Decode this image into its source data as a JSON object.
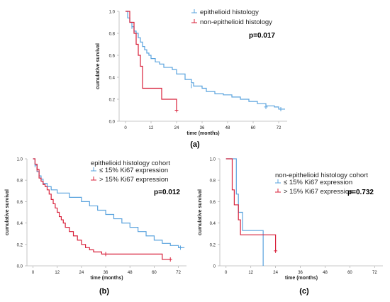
{
  "colors": {
    "blue": "#5aa3de",
    "red": "#d8203a",
    "axis": "#b8b8b8",
    "text": "#222222"
  },
  "chart_data": [
    {
      "id": "a",
      "panel_label": "(a)",
      "type": "line",
      "step": true,
      "title": "",
      "xlabel": "time (months)",
      "ylabel": "cumulative survival",
      "xlim": [
        -3,
        76
      ],
      "ylim": [
        0,
        1.0
      ],
      "xticks": [
        0,
        12,
        24,
        36,
        48,
        60,
        72
      ],
      "yticks": [
        0.0,
        0.2,
        0.4,
        0.6,
        0.8,
        1.0
      ],
      "ytick_labels": [
        "0.0",
        "0.2",
        "0.4",
        "0.6",
        "0.8",
        "1.0"
      ],
      "annotation": "p=0.017",
      "legend": {
        "placement": "top-right"
      },
      "series": [
        {
          "name": "epithelioid histology",
          "color": "blue",
          "x": [
            0,
            1,
            2,
            3,
            4,
            5,
            6,
            7,
            8,
            9,
            10,
            11,
            12,
            14,
            16,
            18,
            22,
            24,
            28,
            31,
            32,
            36,
            38,
            42,
            46,
            50,
            54,
            58,
            62,
            66,
            70,
            72,
            75
          ],
          "y": [
            1.0,
            0.94,
            0.9,
            0.86,
            0.82,
            0.8,
            0.76,
            0.72,
            0.68,
            0.65,
            0.62,
            0.6,
            0.57,
            0.54,
            0.52,
            0.49,
            0.47,
            0.43,
            0.38,
            0.35,
            0.32,
            0.3,
            0.27,
            0.25,
            0.24,
            0.22,
            0.2,
            0.18,
            0.16,
            0.14,
            0.13,
            0.11,
            0.11
          ],
          "censored": [
            [
              3,
              0.86
            ],
            [
              31,
              0.32
            ],
            [
              66,
              0.13
            ],
            [
              73,
              0.11
            ]
          ]
        },
        {
          "name": "non-epithelioid histology",
          "color": "red",
          "x": [
            0,
            2,
            4,
            5,
            6,
            7,
            8,
            17,
            24
          ],
          "y": [
            1.0,
            0.9,
            0.8,
            0.7,
            0.6,
            0.5,
            0.3,
            0.2,
            0.1
          ],
          "censored": [
            [
              24,
              0.1
            ]
          ]
        }
      ]
    },
    {
      "id": "b",
      "panel_label": "(b)",
      "type": "line",
      "step": true,
      "title": "",
      "legend_title": "epithelioid histology cohort",
      "xlabel": "time (months)",
      "ylabel": "cumulative survival",
      "xlim": [
        -3,
        76
      ],
      "ylim": [
        0,
        1.0
      ],
      "xticks": [
        0,
        12,
        24,
        36,
        48,
        60,
        72
      ],
      "yticks": [
        0.0,
        0.2,
        0.4,
        0.6,
        0.8,
        1.0
      ],
      "ytick_labels": [
        "0.0",
        "0.2",
        "0.4",
        "0.6",
        "0.8",
        "1.0"
      ],
      "annotation": "p=0.012",
      "legend": {
        "placement": "top-right"
      },
      "series": [
        {
          "name": "≤ 15% Ki67 expression",
          "color": "blue",
          "x": [
            0,
            1,
            2,
            3,
            4,
            5,
            7,
            9,
            12,
            18,
            24,
            28,
            32,
            36,
            40,
            44,
            48,
            52,
            56,
            60,
            64,
            68,
            72,
            75
          ],
          "y": [
            1.0,
            0.94,
            0.88,
            0.84,
            0.81,
            0.77,
            0.74,
            0.71,
            0.68,
            0.64,
            0.6,
            0.56,
            0.52,
            0.48,
            0.44,
            0.4,
            0.36,
            0.32,
            0.28,
            0.24,
            0.21,
            0.19,
            0.17,
            0.17
          ],
          "censored": [
            [
              1,
              0.94
            ],
            [
              73,
              0.17
            ]
          ]
        },
        {
          "name": "> 15% Ki67 expression",
          "color": "red",
          "x": [
            0,
            1,
            2,
            3,
            4,
            5,
            6,
            7,
            8,
            9,
            10,
            11,
            12,
            13,
            14,
            15,
            16,
            18,
            20,
            22,
            24,
            26,
            28,
            30,
            34,
            64,
            68
          ],
          "y": [
            1.0,
            0.95,
            0.9,
            0.82,
            0.79,
            0.76,
            0.74,
            0.71,
            0.67,
            0.62,
            0.58,
            0.54,
            0.5,
            0.46,
            0.43,
            0.4,
            0.36,
            0.32,
            0.28,
            0.24,
            0.2,
            0.17,
            0.15,
            0.13,
            0.11,
            0.06,
            0.06
          ],
          "censored": [
            [
              2,
              0.9
            ],
            [
              36,
              0.11
            ],
            [
              68,
              0.06
            ]
          ]
        }
      ]
    },
    {
      "id": "c",
      "panel_label": "(c)",
      "type": "line",
      "step": true,
      "title": "",
      "legend_title": "non-epithelioid histology cohort",
      "xlabel": "time (months)",
      "ylabel": "cumulative survival",
      "xlim": [
        -3,
        76
      ],
      "ylim": [
        0,
        1.0
      ],
      "xticks": [
        0,
        12,
        24,
        36,
        48,
        60,
        72
      ],
      "yticks": [
        0.0,
        0.2,
        0.4,
        0.6,
        0.8,
        1.0
      ],
      "ytick_labels": [
        "0",
        "0.2",
        "0.4",
        "0.6",
        "0.8",
        "1.0"
      ],
      "annotation": "p=0.732",
      "legend": {
        "placement": "top-right"
      },
      "series": [
        {
          "name": "≤ 15% Ki67 expression",
          "color": "blue",
          "x": [
            0,
            5,
            6,
            8,
            18
          ],
          "y": [
            1.0,
            0.67,
            0.5,
            0.33,
            0.0
          ],
          "censored": []
        },
        {
          "name": "> 15% Ki67 expression",
          "color": "red",
          "x": [
            0,
            3,
            4,
            6,
            7,
            24
          ],
          "y": [
            1.0,
            0.71,
            0.57,
            0.43,
            0.29,
            0.14
          ],
          "censored": [
            [
              24,
              0.14
            ]
          ]
        }
      ]
    }
  ]
}
